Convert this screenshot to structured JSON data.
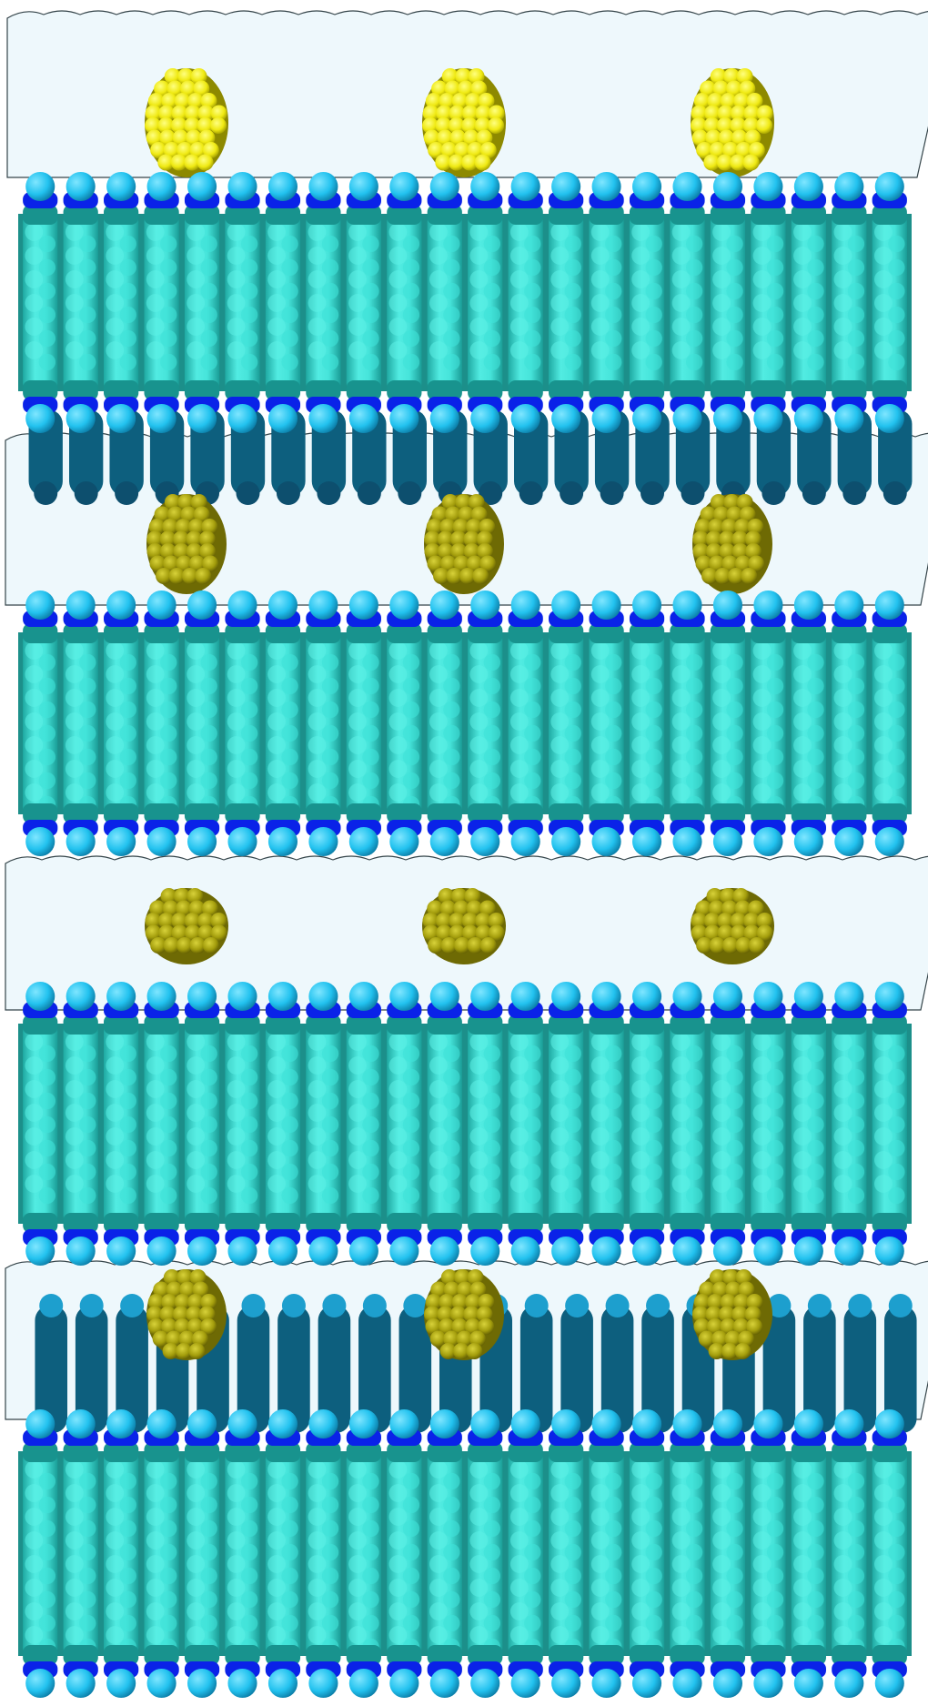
{
  "scene": {
    "subject": "molecular-dynamics-render",
    "bilayer_count": 4,
    "peptides_per_water_layer": 3,
    "colors": {
      "background": "#ffffff",
      "water": "#eef8fc",
      "water_edge": "#2a3a40",
      "lipid_head": "#23c4f0",
      "lipid_phosphate": "#0a22e8",
      "lipid_glycerol": "#18938e",
      "lipid_tail": "#40e2d8",
      "lipid_tail_light": "#5cf0e6",
      "lipid_shadow": "#0d5f7e",
      "peptide_top": "#f2ee10",
      "peptide": "#a8a20c",
      "peptide_dark": "#6e6a04"
    }
  }
}
